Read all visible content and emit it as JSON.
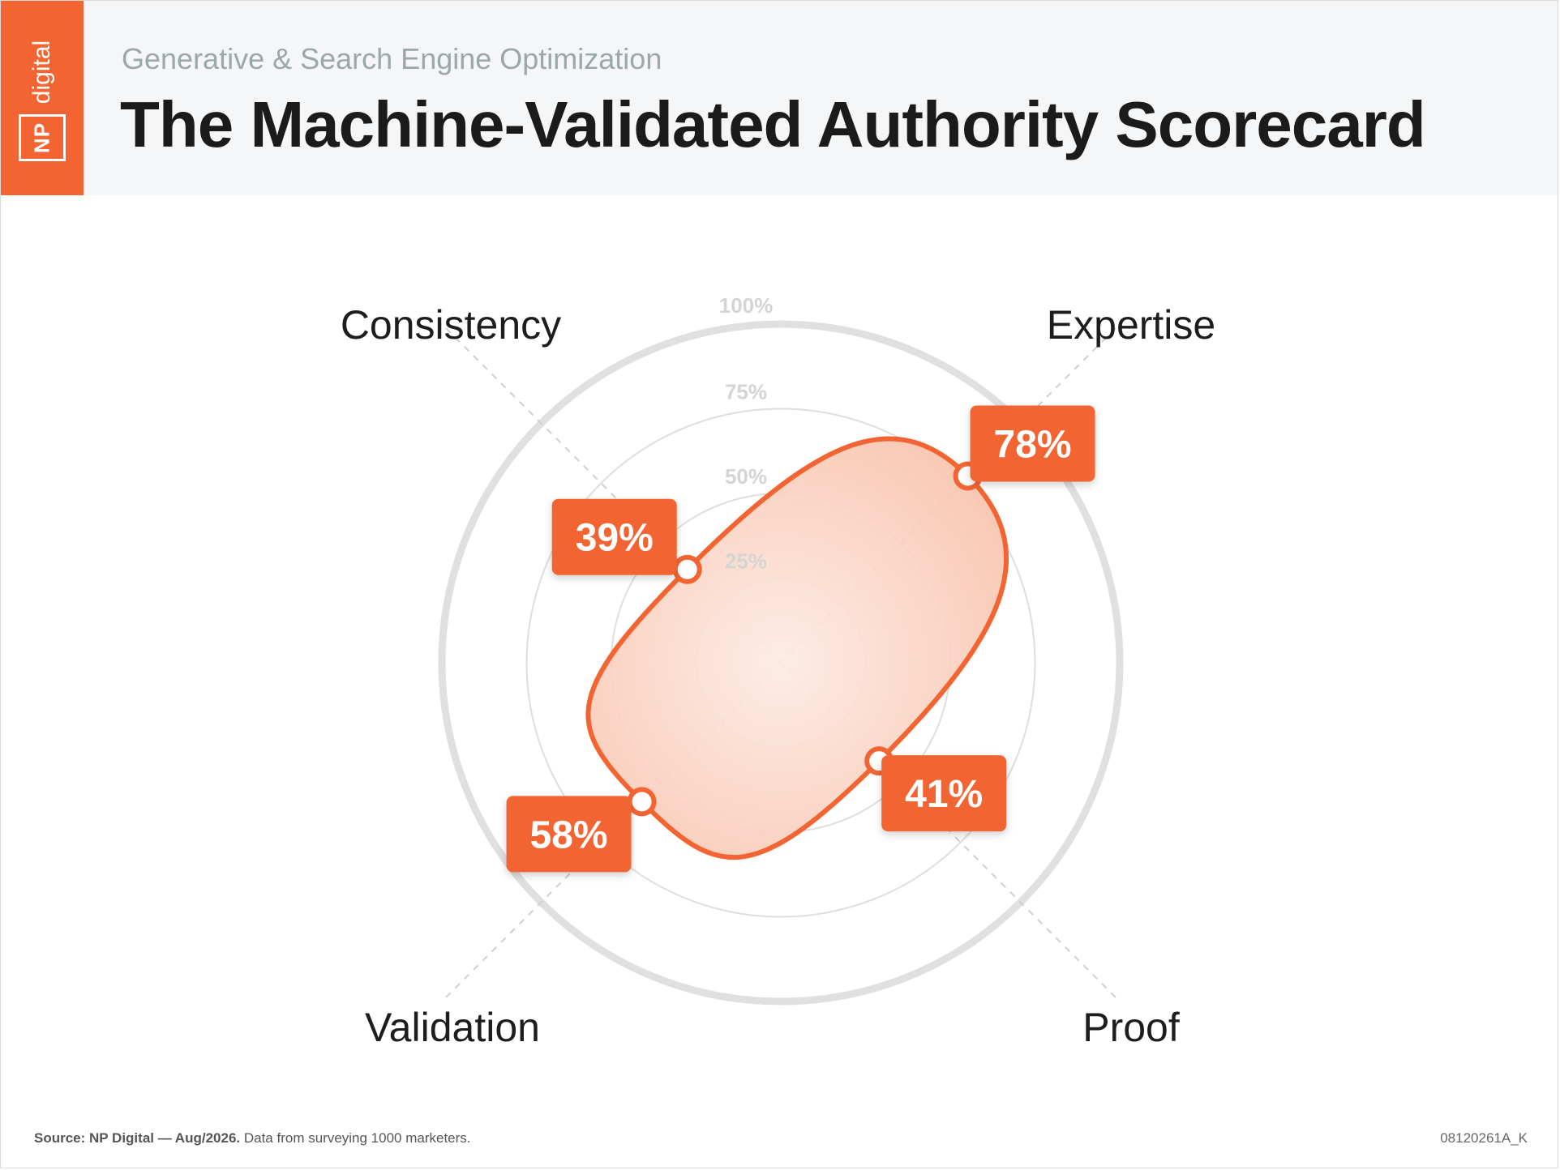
{
  "header": {
    "subtitle": "Generative & Search Engine Optimization",
    "title": "The Machine-Validated Authority Scorecard",
    "logo_np": "NP",
    "logo_digital": "digital"
  },
  "colors": {
    "accent": "#f26532",
    "ring": "#dedede",
    "fill_inner": "#fde8de",
    "fill_outer": "#f8c5b0"
  },
  "chart_data": {
    "type": "radar",
    "rings": [
      {
        "value": 25,
        "label": "25%"
      },
      {
        "value": 50,
        "label": "50%"
      },
      {
        "value": 75,
        "label": "75%"
      },
      {
        "value": 100,
        "label": "100%"
      }
    ],
    "range": [
      0,
      100
    ],
    "axes": [
      {
        "name": "Expertise",
        "value": 78,
        "label": "78%"
      },
      {
        "name": "Proof",
        "value": 41,
        "label": "41%"
      },
      {
        "name": "Validation",
        "value": 58,
        "label": "58%"
      },
      {
        "name": "Consistency",
        "value": 39,
        "label": "39%"
      }
    ]
  },
  "footer": {
    "source_bold": "Source: NP Digital — Aug/2026.",
    "source_rest": " Data from surveying 1000 marketers.",
    "code": "08120261A_K"
  }
}
